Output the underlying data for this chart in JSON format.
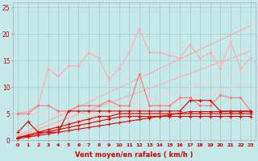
{
  "xlabel": "Vent moyen/en rafales ( km/h )",
  "xlim": [
    -0.5,
    23.5
  ],
  "ylim": [
    0,
    26
  ],
  "yticks": [
    0,
    5,
    10,
    15,
    20,
    25
  ],
  "xticks": [
    0,
    1,
    2,
    3,
    4,
    5,
    6,
    7,
    8,
    9,
    10,
    11,
    12,
    13,
    14,
    15,
    16,
    17,
    18,
    19,
    20,
    21,
    22,
    23
  ],
  "background_color": "#c5e8e8",
  "grid_color": "#adc8c8",
  "x": [
    0,
    1,
    2,
    3,
    4,
    5,
    6,
    7,
    8,
    9,
    10,
    11,
    12,
    13,
    14,
    15,
    16,
    17,
    18,
    19,
    20,
    21,
    22,
    23
  ],
  "reg1": [
    0.4,
    0.9,
    1.35,
    1.8,
    2.25,
    2.7,
    3.15,
    3.6,
    4.05,
    4.5,
    4.95,
    5.4,
    5.85,
    6.3,
    6.75,
    7.2,
    7.65,
    8.1,
    8.55,
    9.0,
    9.45,
    9.9,
    10.35,
    10.8
  ],
  "reg2": [
    0.55,
    1.1,
    1.65,
    2.2,
    2.75,
    3.3,
    3.85,
    4.4,
    4.95,
    5.5,
    6.05,
    6.6,
    7.15,
    7.7,
    8.25,
    8.8,
    9.35,
    9.9,
    10.45,
    11.0,
    11.55,
    12.1,
    12.65,
    13.2
  ],
  "reg3": [
    0.7,
    1.4,
    2.1,
    2.8,
    3.5,
    4.2,
    4.9,
    5.6,
    6.3,
    7.0,
    7.7,
    8.4,
    9.1,
    9.8,
    10.5,
    11.2,
    11.9,
    12.6,
    13.3,
    14.0,
    14.7,
    15.4,
    16.1,
    16.8
  ],
  "reg4": [
    0.9,
    1.8,
    2.7,
    3.6,
    4.5,
    5.4,
    6.3,
    7.2,
    8.1,
    9.0,
    9.9,
    10.8,
    11.7,
    12.6,
    13.5,
    14.4,
    15.3,
    16.2,
    17.1,
    18.0,
    18.9,
    19.8,
    20.7,
    21.6
  ],
  "reg5": [
    5.0,
    5.0,
    5.0,
    5.0,
    5.0,
    5.0,
    5.0,
    5.0,
    5.0,
    5.0,
    5.0,
    5.0,
    5.0,
    5.0,
    5.0,
    5.0,
    5.0,
    5.0,
    5.0,
    5.0,
    5.0,
    5.0,
    5.0,
    5.0
  ],
  "jagged_light": [
    5.0,
    5.5,
    6.5,
    13.5,
    12.0,
    14.0,
    14.0,
    16.5,
    15.5,
    11.5,
    13.5,
    16.5,
    21.0,
    16.5,
    16.5,
    16.0,
    15.5,
    18.0,
    15.5,
    16.5,
    13.5,
    18.5,
    13.5,
    15.5
  ],
  "jagged_medium": [
    5.0,
    5.0,
    6.5,
    6.5,
    5.5,
    5.5,
    6.5,
    6.5,
    6.5,
    7.5,
    6.5,
    6.5,
    12.5,
    6.5,
    6.5,
    6.5,
    8.0,
    8.0,
    6.5,
    6.5,
    8.5,
    8.0,
    8.0,
    5.5
  ],
  "dark1": [
    1.5,
    3.5,
    1.5,
    1.5,
    1.5,
    5.5,
    5.5,
    5.5,
    5.5,
    5.5,
    5.5,
    5.5,
    5.5,
    5.5,
    5.5,
    5.5,
    5.5,
    7.5,
    7.5,
    7.5,
    5.5,
    5.5,
    5.5,
    5.5
  ],
  "dark2": [
    0.5,
    1.0,
    1.5,
    2.0,
    2.5,
    3.0,
    3.5,
    4.0,
    4.5,
    4.5,
    5.0,
    5.0,
    5.0,
    5.0,
    5.0,
    5.0,
    5.0,
    5.0,
    5.0,
    5.0,
    5.0,
    5.0,
    5.0,
    5.0
  ],
  "dark3": [
    0.5,
    0.8,
    1.2,
    1.6,
    2.0,
    2.4,
    2.8,
    3.2,
    3.6,
    4.0,
    4.4,
    4.5,
    4.5,
    4.5,
    4.5,
    4.5,
    4.5,
    4.5,
    4.5,
    4.5,
    4.5,
    4.5,
    4.5,
    4.5
  ],
  "dark4": [
    0.3,
    0.6,
    0.9,
    1.2,
    1.5,
    1.8,
    2.1,
    2.4,
    2.7,
    3.0,
    3.3,
    3.6,
    3.9,
    4.2,
    4.5,
    4.8,
    5.1,
    5.4,
    5.4,
    5.4,
    5.4,
    5.4,
    5.4,
    5.4
  ],
  "dashed_y": [
    -0.3,
    -0.3,
    -0.3,
    -0.3,
    -0.3,
    -0.3,
    -0.3,
    -0.3,
    -0.3,
    -0.3,
    -0.3,
    -0.3,
    -0.3,
    -0.3,
    -0.3,
    -0.3,
    -0.3,
    -0.3,
    -0.3,
    -0.3,
    -0.3,
    -0.3,
    -0.3,
    -0.3
  ],
  "color_light_pink": "#ffaaaa",
  "color_medium_pink": "#ff7777",
  "color_dark_red": "#dd0000",
  "color_reg_light": "#ffbbbb",
  "color_reg_mid": "#ff8888"
}
